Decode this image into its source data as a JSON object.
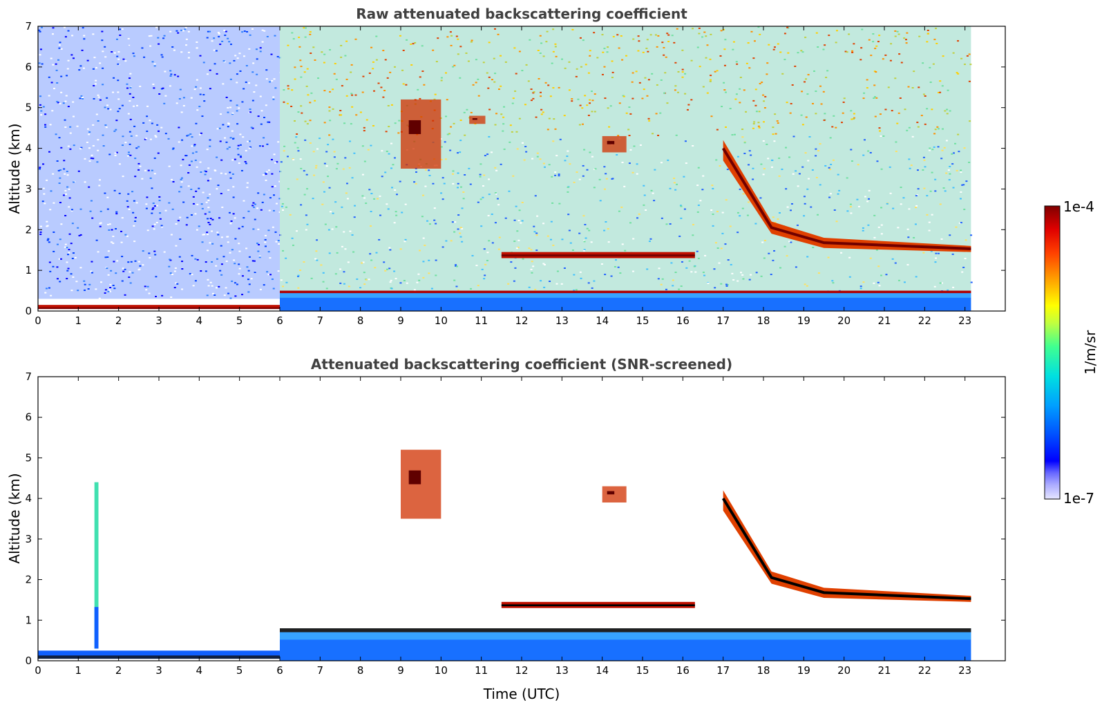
{
  "chart_data": [
    {
      "type": "heatmap",
      "title": "Raw attenuated backscattering coefficient",
      "xlabel": "",
      "ylabel": "Altitude (km)",
      "xlim": [
        0,
        24
      ],
      "ylim": [
        0,
        7
      ],
      "x_ticks": [
        "0",
        "1",
        "2",
        "3",
        "4",
        "5",
        "6",
        "7",
        "8",
        "9",
        "10",
        "11",
        "12",
        "13",
        "14",
        "15",
        "16",
        "17",
        "18",
        "19",
        "20",
        "21",
        "22",
        "23"
      ],
      "y_ticks": [
        "0",
        "1",
        "2",
        "3",
        "4",
        "5",
        "6",
        "7"
      ],
      "data_extent_hours": [
        0,
        23.15
      ],
      "features": [
        {
          "kind": "noisy_background_low_snr",
          "x": [
            0,
            6
          ],
          "y": [
            0.3,
            7
          ]
        },
        {
          "kind": "noisy_background_high_snr",
          "x": [
            6,
            23.15
          ],
          "y": [
            0.3,
            7
          ]
        },
        {
          "kind": "surface_layer",
          "x": [
            0,
            6
          ],
          "y": [
            0.05,
            0.15
          ]
        },
        {
          "kind": "boundary_layer",
          "x": [
            6,
            23.15
          ],
          "y": [
            0,
            0.5
          ]
        },
        {
          "kind": "cloud_layer",
          "x": [
            11.5,
            16.3
          ],
          "y": [
            1.3,
            1.45
          ]
        },
        {
          "kind": "cloud_layer",
          "x": [
            17,
            23.15
          ],
          "y": [
            1.6,
            4.2
          ]
        },
        {
          "kind": "aerosol_patch",
          "x": [
            9,
            10
          ],
          "y": [
            3.5,
            5.2
          ]
        },
        {
          "kind": "aerosol_patch",
          "x": [
            10.7,
            11.1
          ],
          "y": [
            4.6,
            4.8
          ]
        },
        {
          "kind": "aerosol_patch",
          "x": [
            14,
            14.6
          ],
          "y": [
            3.9,
            4.3
          ]
        }
      ]
    },
    {
      "type": "heatmap",
      "title": "Attenuated backscattering coefficient (SNR-screened)",
      "xlabel": "Time (UTC)",
      "ylabel": "Altitude (km)",
      "xlim": [
        0,
        24
      ],
      "ylim": [
        0,
        7
      ],
      "x_ticks": [
        "0",
        "1",
        "2",
        "3",
        "4",
        "5",
        "6",
        "7",
        "8",
        "9",
        "10",
        "11",
        "12",
        "13",
        "14",
        "15",
        "16",
        "17",
        "18",
        "19",
        "20",
        "21",
        "22",
        "23"
      ],
      "y_ticks": [
        "0",
        "1",
        "2",
        "3",
        "4",
        "5",
        "6",
        "7"
      ],
      "data_extent_hours": [
        0,
        23.15
      ],
      "features": [
        {
          "kind": "surface_layer",
          "x": [
            0,
            6
          ],
          "y": [
            0.05,
            0.25
          ]
        },
        {
          "kind": "boundary_layer",
          "x": [
            6,
            23.15
          ],
          "y": [
            0,
            0.8
          ]
        },
        {
          "kind": "vertical_plume",
          "x": [
            1.4,
            1.5
          ],
          "y": [
            0.3,
            4.4
          ]
        },
        {
          "kind": "cloud_layer",
          "x": [
            11.5,
            16.3
          ],
          "y": [
            1.3,
            1.45
          ]
        },
        {
          "kind": "cloud_layer",
          "x": [
            17,
            23.15
          ],
          "y": [
            1.6,
            4.2
          ]
        },
        {
          "kind": "aerosol_patch",
          "x": [
            9,
            10
          ],
          "y": [
            3.5,
            5.2
          ]
        },
        {
          "kind": "aerosol_patch",
          "x": [
            14,
            14.6
          ],
          "y": [
            3.9,
            4.3
          ]
        }
      ]
    }
  ],
  "colorbar": {
    "max_label": "1e-4",
    "min_label": "1e-7",
    "unit_label": "1/m/sr",
    "colors": [
      "#e6e6ff",
      "#aaaaff",
      "#6666ff",
      "#0000ff",
      "#0050ff",
      "#00a0ff",
      "#00e0e0",
      "#40ff90",
      "#c0ff40",
      "#ffff00",
      "#ffa000",
      "#ff4000",
      "#e00000",
      "#800000"
    ]
  }
}
